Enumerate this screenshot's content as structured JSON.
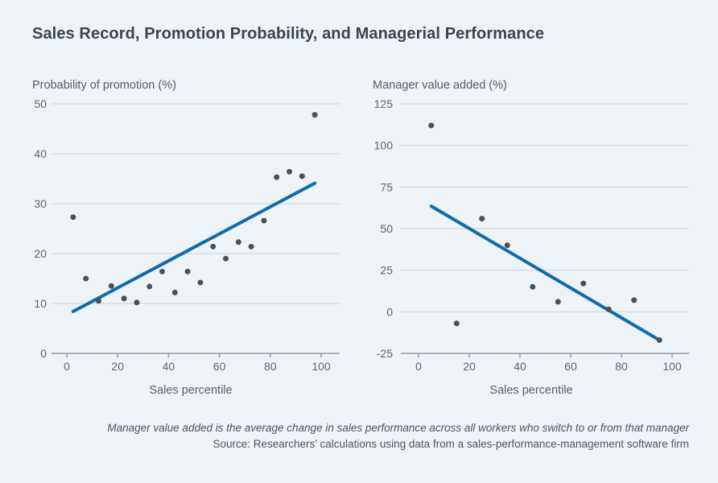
{
  "title": "Sales Record, Promotion Probability, and Managerial Performance",
  "footer": {
    "note": "Manager value added is the average change in sales performance across all workers who switch to or from that manager",
    "source": "Source: Researchers’ calculations using data from a sales-performance-management software firm"
  },
  "colors": {
    "background": "#eef3f8",
    "title_text": "#3b434b",
    "axis_title_text": "#565e66",
    "tick_label_text": "#5f666d",
    "footer_text": "#4d555d",
    "gridline": "#ccd2d9",
    "axis_line": "#949ca4",
    "dot": "#4c5156",
    "trend_line": "#0f6bad"
  },
  "chart_data": [
    {
      "type": "scatter",
      "ylabel": "Probability of promotion (%)",
      "xlabel": "Sales percentile",
      "xlim": [
        0,
        100
      ],
      "ylim": [
        0,
        50
      ],
      "xticks": [
        0,
        20,
        40,
        60,
        80,
        100
      ],
      "yticks": [
        0,
        10,
        20,
        30,
        40,
        50
      ],
      "grid": "horizontal",
      "legend": "none",
      "points": [
        [
          2.5,
          27.3
        ],
        [
          7.5,
          15.0
        ],
        [
          12.5,
          10.5
        ],
        [
          17.5,
          13.5
        ],
        [
          22.5,
          11.0
        ],
        [
          27.5,
          10.2
        ],
        [
          32.5,
          13.4
        ],
        [
          37.5,
          16.4
        ],
        [
          42.5,
          12.2
        ],
        [
          47.5,
          16.4
        ],
        [
          52.5,
          14.2
        ],
        [
          57.5,
          21.4
        ],
        [
          62.5,
          19.0
        ],
        [
          67.5,
          22.3
        ],
        [
          72.5,
          21.4
        ],
        [
          77.5,
          26.6
        ],
        [
          82.5,
          35.3
        ],
        [
          87.5,
          36.4
        ],
        [
          92.5,
          35.5
        ],
        [
          97.5,
          47.8
        ]
      ],
      "trend_line": {
        "x1": 2.5,
        "y1": 8.4,
        "x2": 97.5,
        "y2": 34.1
      }
    },
    {
      "type": "scatter",
      "ylabel": "Manager value added (%)",
      "xlabel": "Sales percentile",
      "xlim": [
        0,
        100
      ],
      "ylim": [
        -25,
        125
      ],
      "xticks": [
        0,
        20,
        40,
        60,
        80,
        100
      ],
      "yticks": [
        -25,
        0,
        25,
        50,
        75,
        100,
        125
      ],
      "grid": "horizontal",
      "legend": "none",
      "points": [
        [
          5,
          112
        ],
        [
          15,
          -7
        ],
        [
          25,
          56
        ],
        [
          35,
          40
        ],
        [
          45,
          15
        ],
        [
          55,
          6
        ],
        [
          65,
          17
        ],
        [
          75,
          1.5
        ],
        [
          85,
          7
        ],
        [
          95,
          -17
        ]
      ],
      "trend_line": {
        "x1": 5,
        "y1": 63.5,
        "x2": 95,
        "y2": -17
      }
    }
  ]
}
